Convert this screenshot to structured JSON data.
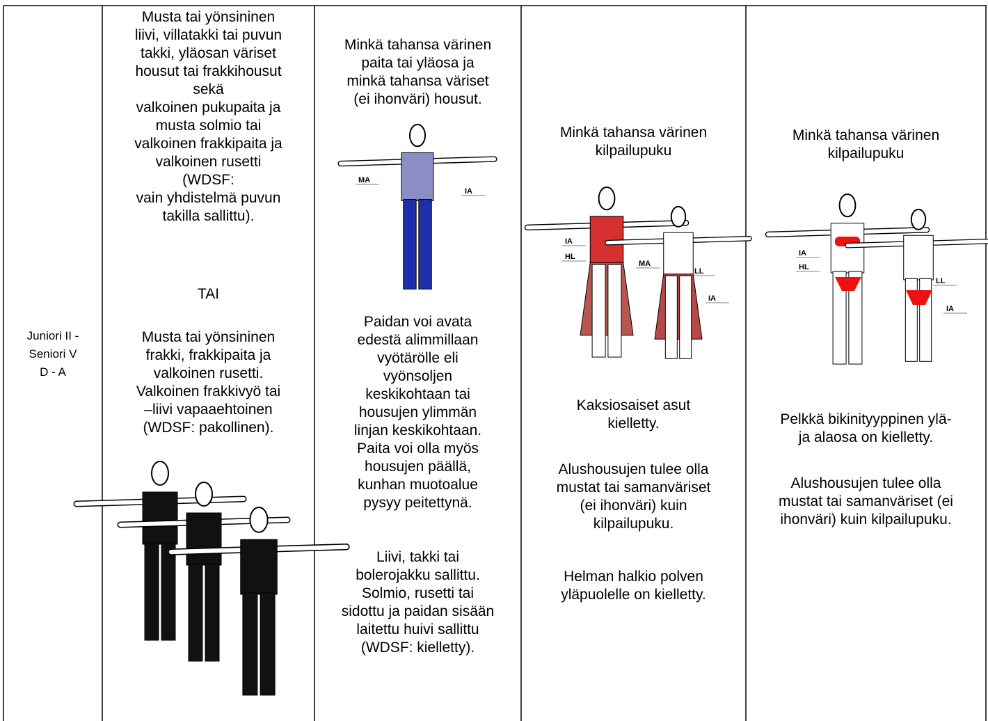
{
  "table": {
    "rows": [
      {
        "cells": [
          {
            "blocks": [
              {
                "lines": [
                  "Juniori II -",
                  "Seniori V",
                  "D - A"
                ]
              }
            ]
          },
          {
            "blocks": [
              {
                "lines": [
                  "Musta tai yönsininen",
                  "liivi, villatakki tai puvun",
                  "takki, yläosan väriset",
                  "housut tai frakkihousut",
                  "sekä",
                  "valkoinen pukupaita ja",
                  "musta solmio tai",
                  "valkoinen frakkipaita ja",
                  "valkoinen rusetti",
                  "(WDSF:",
                  "vain yhdistelmä puvun",
                  "takilla sallittu)."
                ]
              },
              {
                "lines": [
                  "TAI"
                ]
              },
              {
                "lines": [
                  "Musta tai yönsininen",
                  "frakki, frakkipaita ja",
                  "valkoinen rusetti.",
                  "Valkoinen frakkivyö tai",
                  "–liivi vapaaehtoinen",
                  "(WDSF: pakollinen)."
                ]
              }
            ]
          },
          {
            "blocks": [
              {
                "lines": [
                  "Minkä tahansa värinen",
                  "paita tai yläosa ja",
                  "minkä tahansa väriset",
                  "(ei ihonväri) housut."
                ]
              },
              {
                "figure_labels": [
                  "MA",
                  "IA"
                ]
              },
              {
                "lines": [
                  "Paidan voi avata",
                  "edestä alimmillaan",
                  "vyötärölle eli",
                  "vyönsoljen",
                  "keskikohtaan tai",
                  "housujen ylimmän",
                  "linjan keskikohtaan.",
                  "Paita voi olla myös",
                  "housujen päällä,",
                  "kunhan muotoalue",
                  "pysyy peitettynä."
                ]
              },
              {
                "lines": [
                  "Liivi, takki tai",
                  "bolerojakku sallittu.",
                  "Solmio, rusetti tai",
                  "sidottu ja paidan sisään",
                  "laitettu huivi sallittu",
                  "(WDSF: kielletty)."
                ]
              }
            ]
          },
          {
            "blocks": [
              {
                "lines": [
                  "Minkä tahansa värinen",
                  "kilpailupuku"
                ]
              },
              {
                "figure_labels": [
                  "IA",
                  "HL",
                  "MA",
                  "LL",
                  "IA"
                ]
              },
              {
                "lines": [
                  "Kaksiosaiset asut",
                  "kielletty."
                ]
              },
              {
                "lines": [
                  "Alushousujen tulee olla",
                  "mustat tai samanväriset",
                  "(ei ihonväri) kuin",
                  "kilpailupuku."
                ]
              },
              {
                "lines": [
                  "Helman halkio polven",
                  "yläpuolelle on kielletty."
                ]
              }
            ]
          },
          {
            "blocks": [
              {
                "lines": [
                  "Minkä tahansa värinen",
                  "kilpailupuku"
                ]
              },
              {
                "figure_labels": [
                  "IA",
                  "HL",
                  "LL",
                  "IA"
                ]
              },
              {
                "lines": [
                  "Pelkkä bikinityyppinen ylä-",
                  "ja alaosa on kielletty."
                ]
              },
              {
                "lines": [
                  "Alushousujen tulee olla",
                  "mustat tai samanväriset (ei",
                  "ihonväri) kuin kilpailupuku."
                ]
              }
            ]
          }
        ]
      }
    ]
  }
}
